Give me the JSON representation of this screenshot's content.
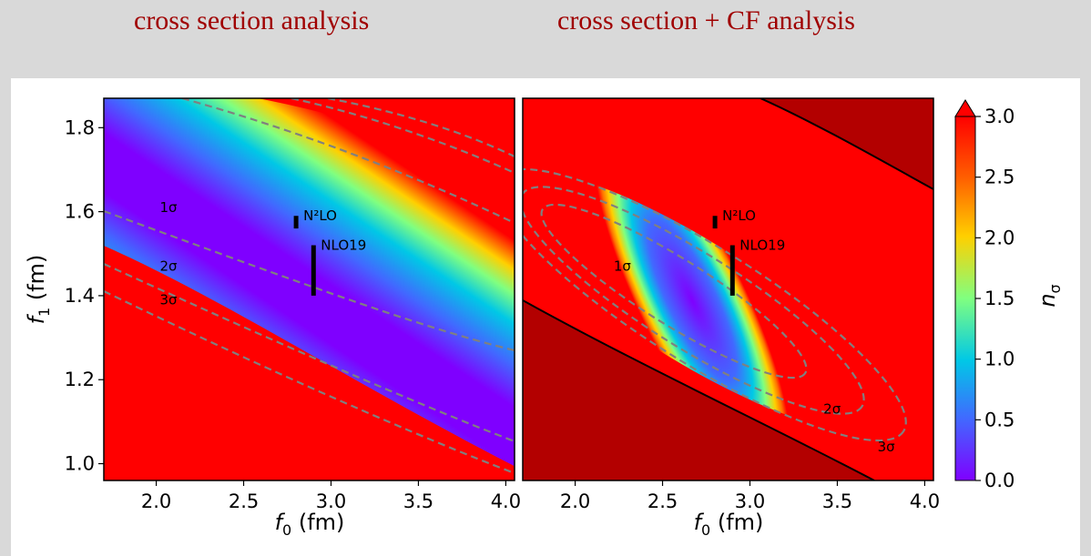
{
  "titles": {
    "left": "cross section analysis",
    "right": "cross section + CF analysis"
  },
  "colors": {
    "title": "#a00000",
    "excluded_region": "#b30000",
    "contour": "#808080",
    "marker": "#000000",
    "background": "#d9d9d9",
    "colormap": [
      "#7f00ff",
      "#4169ff",
      "#00c8e6",
      "#80ff80",
      "#ffd000",
      "#ff6000",
      "#ff0000"
    ]
  },
  "chart_data": [
    {
      "type": "heatmap",
      "title": "cross section analysis",
      "xlabel": "f0 (fm)",
      "ylabel": "f1 (fm)",
      "xlim": [
        1.7,
        4.05
      ],
      "ylim": [
        0.96,
        1.87
      ],
      "xticks": [
        "2.0",
        "2.5",
        "3.0",
        "3.5",
        "4.0"
      ],
      "yticks": [
        "1.0",
        "1.2",
        "1.4",
        "1.6",
        "1.8"
      ],
      "contour_labels": [
        {
          "text": "1σ",
          "x": 2.07,
          "y": 1.61
        },
        {
          "text": "2σ",
          "x": 2.07,
          "y": 1.47
        },
        {
          "text": "3σ",
          "x": 2.07,
          "y": 1.39
        }
      ],
      "points": [
        {
          "label": "N²LO",
          "x": 2.8,
          "y_low": 1.56,
          "y_high": 1.59
        },
        {
          "label": "NLO19",
          "x": 2.9,
          "y_low": 1.4,
          "y_high": 1.52
        }
      ]
    },
    {
      "type": "heatmap",
      "title": "cross section + CF analysis",
      "xlabel": "f0 (fm)",
      "ylabel": "",
      "xlim": [
        1.7,
        4.05
      ],
      "ylim": [
        0.96,
        1.87
      ],
      "xticks": [
        "2.0",
        "2.5",
        "3.0",
        "3.5",
        "4.0"
      ],
      "contour_labels": [
        {
          "text": "1σ",
          "x": 2.27,
          "y": 1.47
        },
        {
          "text": "2σ",
          "x": 3.47,
          "y": 1.13
        },
        {
          "text": "3σ",
          "x": 3.78,
          "y": 1.04
        }
      ],
      "points": [
        {
          "label": "N²LO",
          "x": 2.8,
          "y_low": 1.56,
          "y_high": 1.59
        },
        {
          "label": "NLO19",
          "x": 2.9,
          "y_low": 1.4,
          "y_high": 1.52
        }
      ]
    }
  ],
  "colorbar": {
    "label": "nσ",
    "range": [
      0.0,
      3.0
    ],
    "ticks": [
      "0.0",
      "0.5",
      "1.0",
      "1.5",
      "2.0",
      "2.5",
      "3.0"
    ],
    "extend": "max"
  }
}
